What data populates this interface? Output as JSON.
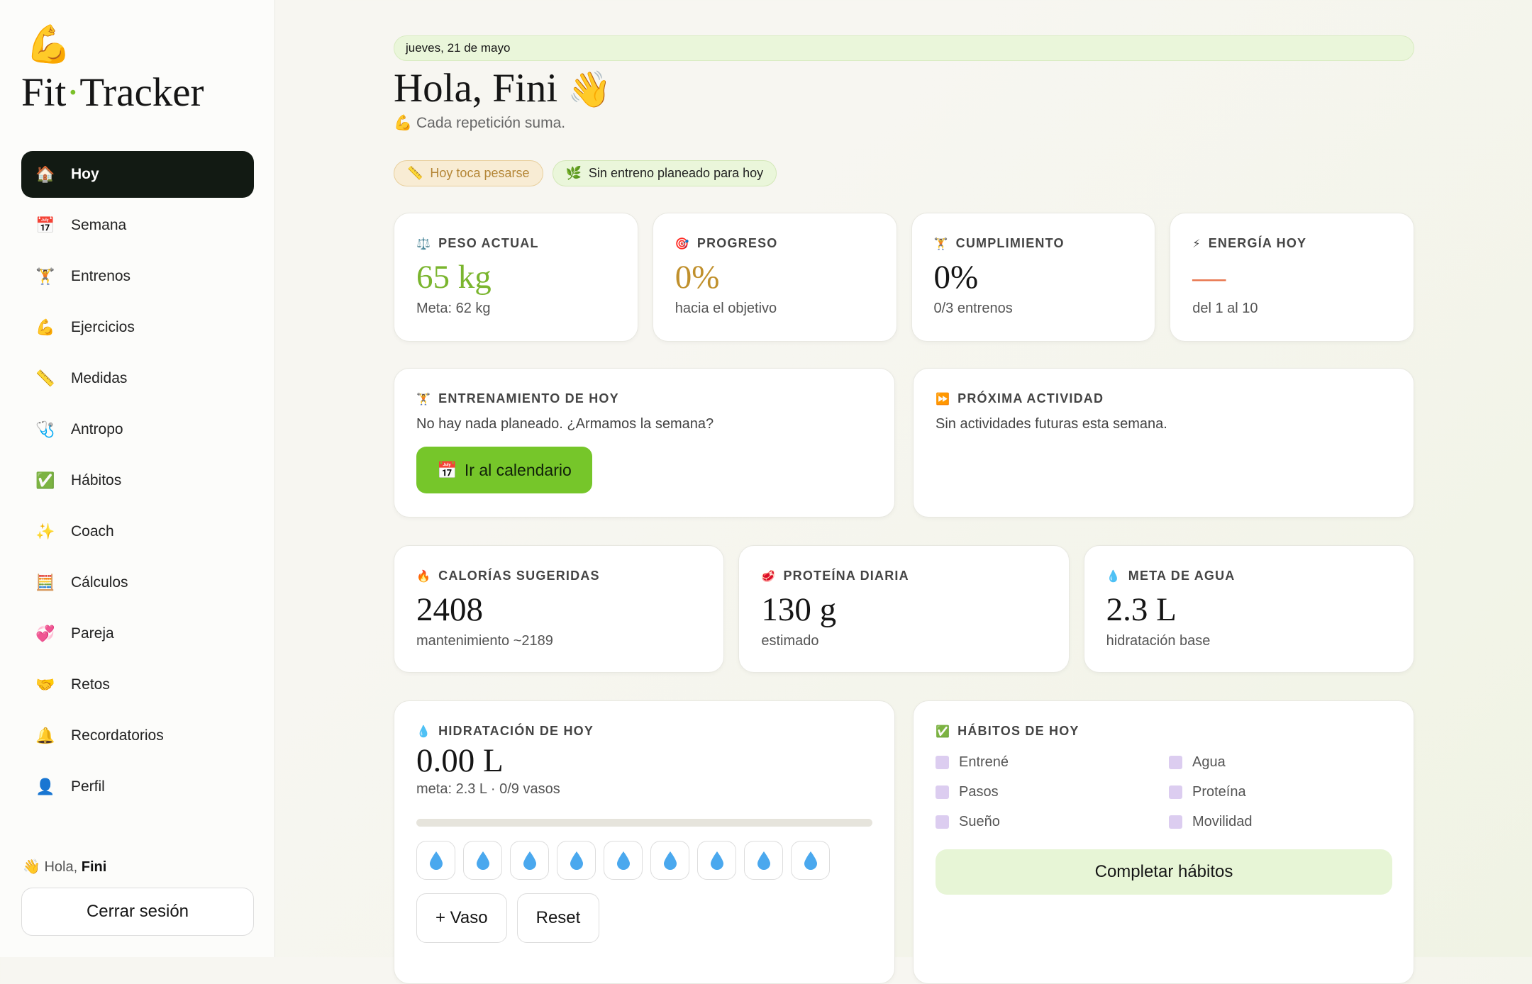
{
  "sidebar": {
    "logo_icon": "💪",
    "brand_left": "Fit",
    "brand_dot": "·",
    "brand_right": "Tracker",
    "nav": [
      {
        "icon": "🏠",
        "label": "Hoy"
      },
      {
        "icon": "📅",
        "label": "Semana"
      },
      {
        "icon": "🏋️",
        "label": "Entrenos"
      },
      {
        "icon": "💪",
        "label": "Ejercicios"
      },
      {
        "icon": "📏",
        "label": "Medidas"
      },
      {
        "icon": "🩺",
        "label": "Antropo"
      },
      {
        "icon": "✅",
        "label": "Hábitos"
      },
      {
        "icon": "✨",
        "label": "Coach"
      },
      {
        "icon": "🧮",
        "label": "Cálculos"
      },
      {
        "icon": "💞",
        "label": "Pareja"
      },
      {
        "icon": "🤝",
        "label": "Retos"
      },
      {
        "icon": "🔔",
        "label": "Recordatorios"
      },
      {
        "icon": "👤",
        "label": "Perfil"
      }
    ],
    "greeting_icon": "👋",
    "greeting": "Hola,",
    "user": "Fini",
    "logout": "Cerrar sesión"
  },
  "header": {
    "date": "jueves, 21 de mayo",
    "title": "Hola, Fini",
    "title_icon": "👋",
    "subtitle_icon": "💪",
    "subtitle": "Cada repetición suma.",
    "badges": [
      {
        "icon": "📏",
        "label": "Hoy toca pesarse"
      },
      {
        "icon": "🌿",
        "label": "Sin entreno planeado para hoy"
      }
    ]
  },
  "stats": [
    {
      "icon": "⚖️",
      "label": "PESO ACTUAL",
      "value": "65 kg",
      "note": "Meta: 62 kg",
      "color": "#7ab52e"
    },
    {
      "icon": "🎯",
      "label": "PROGRESO",
      "value": "0%",
      "note": "hacia el objetivo",
      "color": "#c0902c"
    },
    {
      "icon": "🏋️",
      "label": "CUMPLIMIENTO",
      "value": "0%",
      "note": "0/3 entrenos",
      "color": "#151515"
    },
    {
      "icon": "⚡",
      "label": "ENERGÍA HOY",
      "value": "—",
      "note": "del 1 al 10",
      "color": "#e8734a"
    }
  ],
  "today_workout": {
    "icon": "🏋️",
    "label": "ENTRENAMIENTO DE HOY",
    "text": "No hay nada planeado. ¿Armamos la semana?",
    "button_icon": "📅",
    "button": "Ir al calendario"
  },
  "next_activity": {
    "icon": "⏩",
    "label": "PRÓXIMA ACTIVIDAD",
    "text": "Sin actividades futuras esta semana."
  },
  "nutrition": [
    {
      "icon": "🔥",
      "label": "CALORÍAS SUGERIDAS",
      "value": "2408",
      "note": "mantenimiento ~2189"
    },
    {
      "icon": "🥩",
      "label": "PROTEÍNA DIARIA",
      "value": "130 g",
      "note": "estimado"
    },
    {
      "icon": "💧",
      "label": "META DE AGUA",
      "value": "2.3 L",
      "note": "hidratación base"
    }
  ],
  "hydration": {
    "icon": "💧",
    "label": "HIDRATACIÓN DE HOY",
    "value": "0.00 L",
    "note": "meta: 2.3 L · 0/9 vasos",
    "add": "+ Vaso",
    "reset": "Reset"
  },
  "habits": {
    "icon": "✅",
    "label": "HÁBITOS DE HOY",
    "items": [
      "Entrené",
      "Agua",
      "Pasos",
      "Proteína",
      "Sueño",
      "Movilidad"
    ],
    "button": "Completar hábitos"
  }
}
